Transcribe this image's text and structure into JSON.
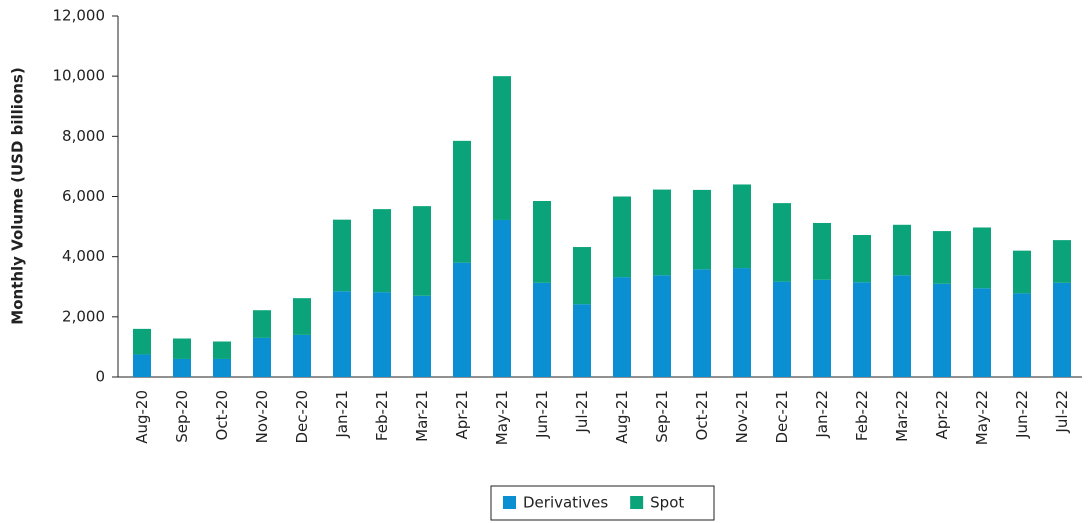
{
  "chart_data": {
    "type": "stacked_bar",
    "ylabel": "Monthly Volume (USD billions)",
    "categories": [
      "Aug-20",
      "Sep-20",
      "Oct-20",
      "Nov-20",
      "Dec-20",
      "Jan-21",
      "Feb-21",
      "Mar-21",
      "Apr-21",
      "May-21",
      "Jun-21",
      "Jul-21",
      "Aug-21",
      "Sep-21",
      "Oct-21",
      "Nov-21",
      "Dec-21",
      "Jan-22",
      "Feb-22",
      "Mar-22",
      "Apr-22",
      "May-22",
      "Jun-22",
      "Jul-22"
    ],
    "series": [
      {
        "name": "Derivatives",
        "color": "#0a8fd2",
        "values": [
          750,
          600,
          600,
          1300,
          1400,
          2850,
          2820,
          2700,
          3800,
          5220,
          3130,
          2420,
          3320,
          3380,
          3580,
          3620,
          3170,
          3230,
          3150,
          3380,
          3100,
          2950,
          2780,
          3130
        ]
      },
      {
        "name": "Spot",
        "color": "#0ba47a",
        "values": [
          850,
          680,
          580,
          920,
          1220,
          2380,
          2760,
          2980,
          4050,
          4780,
          2720,
          1900,
          2680,
          2850,
          2640,
          2780,
          2610,
          1890,
          1570,
          1680,
          1750,
          2020,
          1420,
          1420
        ]
      }
    ],
    "ylim": [
      0,
      12000
    ],
    "yticks": [
      0,
      {
        "value": 2000,
        "label": "2,000"
      },
      {
        "value": 4000,
        "label": "4,000"
      },
      {
        "value": 6000,
        "label": "6,000"
      },
      {
        "value": 8000,
        "label": "8,000"
      },
      {
        "value": 10000,
        "label": "10,000"
      },
      {
        "value": 12000,
        "label": "12,000"
      }
    ],
    "legend": "bottom"
  }
}
